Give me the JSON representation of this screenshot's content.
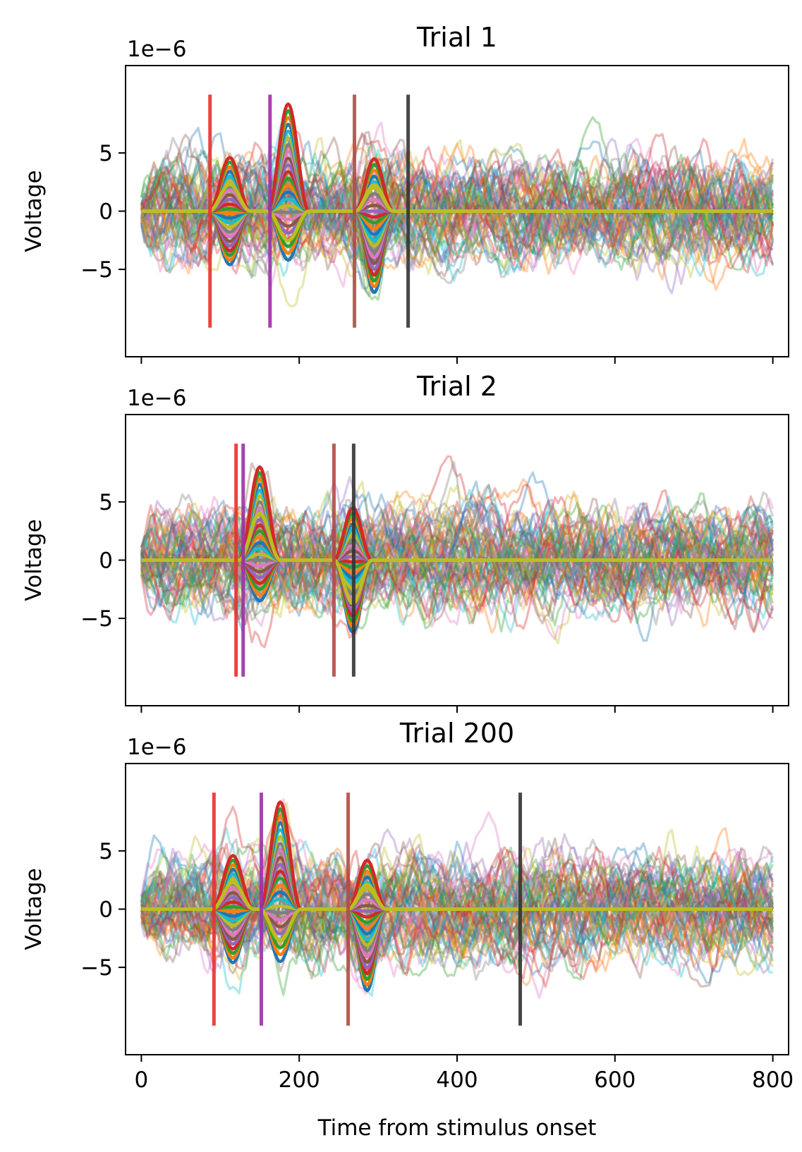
{
  "figure": {
    "xlabel": "Time from stimulus onset"
  },
  "chart_data": [
    {
      "type": "line",
      "title": "Trial 1",
      "ylabel": "Voltage",
      "offset_text": "1e−6",
      "xlim": [
        -20,
        820
      ],
      "ylim": [
        -12.5,
        12.5
      ],
      "yticks": [
        -5,
        0,
        5
      ],
      "ytick_labels": [
        "−5",
        "0",
        "5"
      ],
      "xticks": [
        0,
        200,
        400,
        600,
        800
      ],
      "xtick_labels": [],
      "show_xtick_labels": false,
      "n_traces": 64,
      "noise_amplitude": 2.2,
      "events": [
        {
          "t": 87,
          "color": "#e8302e",
          "ymin": -10,
          "ymax": 10
        },
        {
          "t": 163,
          "color": "#9b2fa8",
          "ymin": -10,
          "ymax": 10
        },
        {
          "t": 270,
          "color": "#b04a45",
          "ymin": -10,
          "ymax": 10
        },
        {
          "t": 338,
          "color": "#333333",
          "ymin": -10,
          "ymax": 10
        }
      ],
      "components": [
        {
          "center": 112,
          "width": 26,
          "peak": 4.6,
          "min_peak": -4.6
        },
        {
          "center": 186,
          "width": 26,
          "peak": 9.2,
          "min_peak": -4.2
        },
        {
          "center": 295,
          "width": 24,
          "peak": 4.5,
          "min_peak": -7.0
        }
      ]
    },
    {
      "type": "line",
      "title": "Trial 2",
      "ylabel": "Voltage",
      "offset_text": "1e−6",
      "xlim": [
        -20,
        820
      ],
      "ylim": [
        -12.5,
        12.5
      ],
      "yticks": [
        -5,
        0,
        5
      ],
      "ytick_labels": [
        "−5",
        "0",
        "5"
      ],
      "xticks": [
        0,
        200,
        400,
        600,
        800
      ],
      "xtick_labels": [],
      "show_xtick_labels": false,
      "n_traces": 64,
      "noise_amplitude": 2.2,
      "events": [
        {
          "t": 120,
          "color": "#e8302e",
          "ymin": -10,
          "ymax": 10
        },
        {
          "t": 129,
          "color": "#9b2fa8",
          "ymin": -10,
          "ymax": 10
        },
        {
          "t": 244,
          "color": "#b04a45",
          "ymin": -10,
          "ymax": 10
        },
        {
          "t": 269,
          "color": "#333333",
          "ymin": -10,
          "ymax": 10
        }
      ],
      "components": [
        {
          "center": 150,
          "width": 26,
          "peak": 8.0,
          "min_peak": -3.5
        },
        {
          "center": 268,
          "width": 24,
          "peak": 4.5,
          "min_peak": -6.2
        }
      ]
    },
    {
      "type": "line",
      "title": "Trial 200",
      "ylabel": "Voltage",
      "offset_text": "1e−6",
      "xlim": [
        -20,
        820
      ],
      "ylim": [
        -12.5,
        12.5
      ],
      "yticks": [
        -5,
        0,
        5
      ],
      "ytick_labels": [
        "−5",
        "0",
        "5"
      ],
      "xticks": [
        0,
        200,
        400,
        600,
        800
      ],
      "xtick_labels": [
        "0",
        "200",
        "400",
        "600",
        "800"
      ],
      "show_xtick_labels": true,
      "n_traces": 64,
      "noise_amplitude": 2.2,
      "events": [
        {
          "t": 92,
          "color": "#e8302e",
          "ymin": -10,
          "ymax": 10
        },
        {
          "t": 152,
          "color": "#9b2fa8",
          "ymin": -10,
          "ymax": 10
        },
        {
          "t": 262,
          "color": "#b04a45",
          "ymin": -10,
          "ymax": 10
        },
        {
          "t": 480,
          "color": "#333333",
          "ymin": -10,
          "ymax": 10
        }
      ],
      "components": [
        {
          "center": 116,
          "width": 26,
          "peak": 4.6,
          "min_peak": -4.6
        },
        {
          "center": 176,
          "width": 26,
          "peak": 9.2,
          "min_peak": -4.5
        },
        {
          "center": 286,
          "width": 24,
          "peak": 4.2,
          "min_peak": -7.0
        }
      ]
    }
  ],
  "colors": {
    "palette": [
      "#1f77b4",
      "#ff7f0e",
      "#2ca02c",
      "#d62728",
      "#9467bd",
      "#8c564b",
      "#e377c2",
      "#7f7f7f",
      "#bcbd22",
      "#17becf"
    ],
    "highlight_trace": "#bcbd22"
  }
}
